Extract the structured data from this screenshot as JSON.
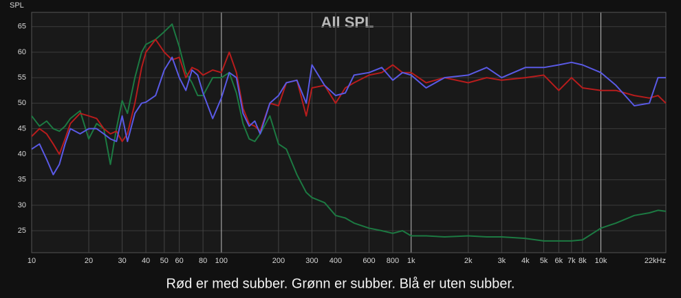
{
  "chart_data": {
    "type": "line",
    "title": "All SPL",
    "y_label": "SPL",
    "caption": "Rød er med subber. Grønn er subber. Blå er uten subber.",
    "log_x": true,
    "grid": true,
    "xlim": [
      10,
      22000
    ],
    "ylim": [
      20.7,
      67.8
    ],
    "yticks": [
      25,
      30,
      35,
      40,
      45,
      50,
      55,
      60,
      65
    ],
    "xticks": [
      10,
      20,
      30,
      40,
      50,
      60,
      80,
      100,
      200,
      300,
      400,
      600,
      800,
      {
        "value": 1000,
        "label": "1k"
      },
      {
        "value": 2000,
        "label": "2k"
      },
      {
        "value": 3000,
        "label": "3k"
      },
      {
        "value": 4000,
        "label": "4k"
      },
      {
        "value": 5000,
        "label": "5k"
      },
      {
        "value": 6000,
        "label": "6k"
      },
      {
        "value": 7000,
        "label": "7k"
      },
      {
        "value": 8000,
        "label": "8k"
      },
      {
        "value": 10000,
        "label": "10k"
      },
      {
        "value": 22000,
        "label": "22kHz"
      }
    ],
    "x": [
      10,
      11,
      12,
      13,
      14,
      15,
      16,
      18,
      20,
      22,
      24,
      26,
      28,
      30,
      32,
      35,
      38,
      40,
      45,
      50,
      55,
      60,
      65,
      70,
      75,
      80,
      90,
      100,
      110,
      120,
      130,
      140,
      150,
      160,
      180,
      200,
      220,
      250,
      280,
      300,
      350,
      400,
      450,
      500,
      600,
      700,
      800,
      900,
      1000,
      1200,
      1500,
      2000,
      2500,
      3000,
      4000,
      5000,
      6000,
      7000,
      8000,
      10000,
      12000,
      15000,
      18000,
      20000,
      22000
    ],
    "series": [
      {
        "color": "#1c7a42",
        "values": [
          47.5,
          45.5,
          46.5,
          45,
          44.5,
          45.5,
          47,
          48.5,
          43,
          46,
          45,
          38,
          45,
          50.5,
          48,
          55,
          60,
          61.5,
          62.5,
          64,
          65.5,
          61,
          56,
          54,
          51.5,
          51.5,
          55,
          55,
          56,
          52,
          46,
          43,
          42.5,
          44,
          47.5,
          42,
          41,
          36,
          32.5,
          31.5,
          30.5,
          28,
          27.5,
          26.5,
          25.5,
          25,
          24.5,
          25,
          24,
          24,
          23.8,
          24,
          23.8,
          23.8,
          23.5,
          23,
          23,
          23,
          23.2,
          25.5,
          26.5,
          28,
          28.5,
          29,
          28.8
        ]
      },
      {
        "color": "#b81c1c",
        "values": [
          43.5,
          45,
          44,
          42,
          40,
          43,
          46,
          48,
          47.5,
          47,
          45,
          44,
          44.5,
          42.5,
          44,
          50,
          57,
          60,
          62.5,
          60,
          58.5,
          59,
          55,
          57,
          56.5,
          55.5,
          56.5,
          56,
          60,
          56,
          49,
          46,
          45.5,
          44.5,
          50,
          49.5,
          54,
          54.5,
          47.5,
          53,
          53.5,
          50,
          53,
          54,
          55.5,
          56,
          57.5,
          56,
          56,
          54,
          55,
          54,
          55,
          54.5,
          55,
          55.5,
          52.5,
          55,
          53,
          52.5,
          52.5,
          51.5,
          51,
          51.5,
          50
        ]
      },
      {
        "color": "#5a5ae6",
        "values": [
          41,
          42,
          39,
          36,
          38,
          42,
          45,
          44,
          45,
          45,
          44,
          43,
          42.5,
          47.5,
          42.5,
          48,
          50,
          50.2,
          51.5,
          56.5,
          59,
          55,
          52.5,
          56.5,
          55.5,
          52,
          47,
          51,
          56,
          55,
          48,
          45.5,
          46.5,
          44,
          50,
          51.5,
          54,
          54.5,
          50,
          57.5,
          53.5,
          51.5,
          52,
          55.5,
          56,
          57,
          54.5,
          56,
          55.5,
          53,
          55,
          55.5,
          57,
          55,
          57,
          57,
          57.5,
          58,
          57.5,
          56,
          53.5,
          49.5,
          50,
          55,
          55
        ]
      }
    ]
  }
}
